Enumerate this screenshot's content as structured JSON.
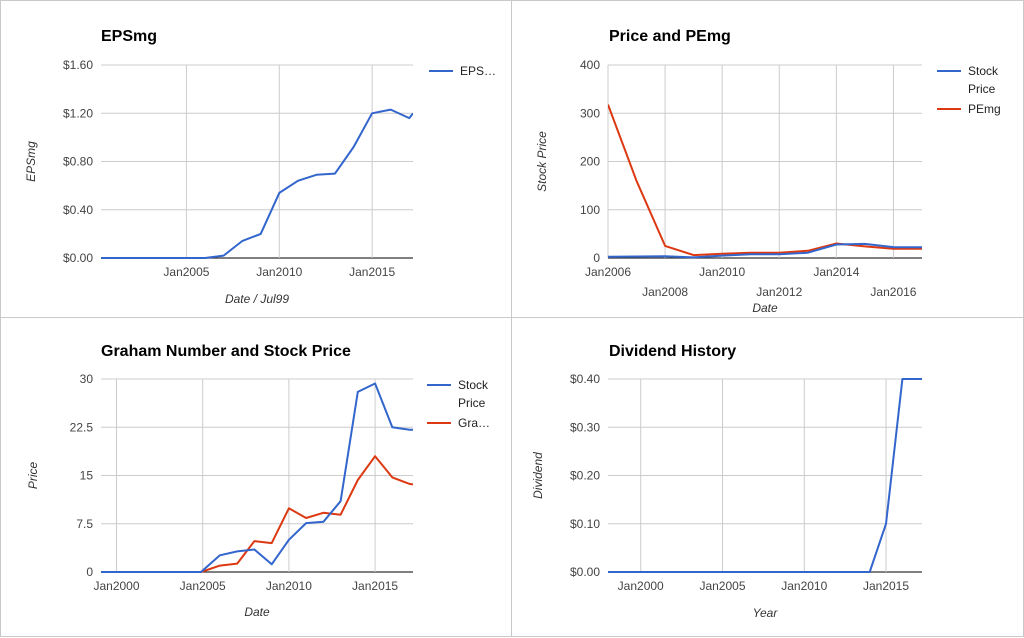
{
  "chart_data": [
    {
      "type": "line",
      "title": "EPSmg",
      "xlabel": "Date / Jul99",
      "ylabel": "EPSmg",
      "x_ticks": [
        "Jan2005",
        "Jan2010",
        "Jan2015"
      ],
      "y_ticks": [
        "$0.00",
        "$0.40",
        "$0.80",
        "$1.20",
        "$1.60"
      ],
      "ylim": [
        0,
        1.6
      ],
      "xlim": [
        2000.4,
        2017.2
      ],
      "legend_position": "right",
      "series": [
        {
          "name": "EPS…",
          "color": "#3366cc",
          "x": [
            2000.4,
            2006,
            2007,
            2008,
            2009,
            2010,
            2011,
            2012,
            2013,
            2014,
            2015,
            2016,
            2017,
            2017.2
          ],
          "values": [
            0,
            0,
            0.02,
            0.14,
            0.2,
            0.54,
            0.64,
            0.69,
            0.7,
            0.92,
            1.2,
            1.23,
            1.16,
            1.2
          ]
        }
      ]
    },
    {
      "type": "line",
      "title": "Price and PEmg",
      "xlabel": "Date",
      "ylabel": "Stock Price",
      "x_ticks": [
        "Jan2006",
        "Jan2008",
        "Jan2010",
        "Jan2012",
        "Jan2014",
        "Jan2016"
      ],
      "y_ticks": [
        "0",
        "100",
        "200",
        "300",
        "400"
      ],
      "ylim": [
        0,
        400
      ],
      "xlim": [
        2006,
        2017
      ],
      "legend_position": "right",
      "series": [
        {
          "name": "Stock Price",
          "color": "#3366cc",
          "x": [
            2006,
            2007,
            2008,
            2009,
            2010,
            2011,
            2012,
            2013,
            2014,
            2015,
            2016,
            2017
          ],
          "values": [
            2.6,
            3.2,
            3.5,
            1.2,
            5,
            7.6,
            7.8,
            11,
            28,
            29.3,
            22.5,
            22.1
          ]
        },
        {
          "name": "PEmg",
          "color": "#dc3912",
          "x": [
            2006,
            2007,
            2008,
            2009,
            2010,
            2011,
            2012,
            2013,
            2014,
            2015,
            2016,
            2017
          ],
          "values": [
            318,
            160,
            25,
            6,
            9,
            11,
            11,
            15,
            30,
            24,
            19,
            19
          ]
        }
      ]
    },
    {
      "type": "line",
      "title": "Graham Number and Stock Price",
      "xlabel": "Date",
      "ylabel": "Price",
      "x_ticks": [
        "Jan2000",
        "Jan2005",
        "Jan2010",
        "Jan2015"
      ],
      "y_ticks": [
        "0",
        "7.5",
        "15",
        "22.5",
        "30"
      ],
      "ylim": [
        0,
        30
      ],
      "xlim": [
        1999.1,
        2017.2
      ],
      "legend_position": "right",
      "series": [
        {
          "name": "Stock Price",
          "color": "#3366cc",
          "x": [
            1999.1,
            2004.9,
            2006,
            2007,
            2008,
            2009,
            2010,
            2011,
            2012,
            2013,
            2014,
            2015,
            2016,
            2017,
            2017.2
          ],
          "values": [
            0,
            0,
            2.6,
            3.2,
            3.5,
            1.2,
            5,
            7.6,
            7.8,
            11,
            28,
            29.3,
            22.5,
            22.1,
            22.1
          ]
        },
        {
          "name": "Gra…",
          "color": "#dc3912",
          "x": [
            1999.1,
            2004.9,
            2006,
            2007,
            2008,
            2009,
            2010,
            2011,
            2012,
            2013,
            2014,
            2015,
            2016,
            2017,
            2017.2
          ],
          "values": [
            0,
            0,
            1,
            1.3,
            4.8,
            4.5,
            9.9,
            8.4,
            9.2,
            8.9,
            14.3,
            18,
            14.7,
            13.7,
            13.6
          ]
        }
      ]
    },
    {
      "type": "line",
      "title": "Dividend History",
      "xlabel": "Year",
      "ylabel": "Dividend",
      "x_ticks": [
        "Jan2000",
        "Jan2005",
        "Jan2010",
        "Jan2015"
      ],
      "y_ticks": [
        "$0.00",
        "$0.10",
        "$0.20",
        "$0.30",
        "$0.40"
      ],
      "ylim": [
        0,
        0.4
      ],
      "xlim": [
        1998,
        2017.2
      ],
      "legend_position": "none",
      "series": [
        {
          "color": "#3366cc",
          "x": [
            1998,
            2014,
            2015,
            2016,
            2017.2
          ],
          "values": [
            0,
            0,
            0.1,
            0.4,
            0.4
          ]
        }
      ]
    }
  ]
}
